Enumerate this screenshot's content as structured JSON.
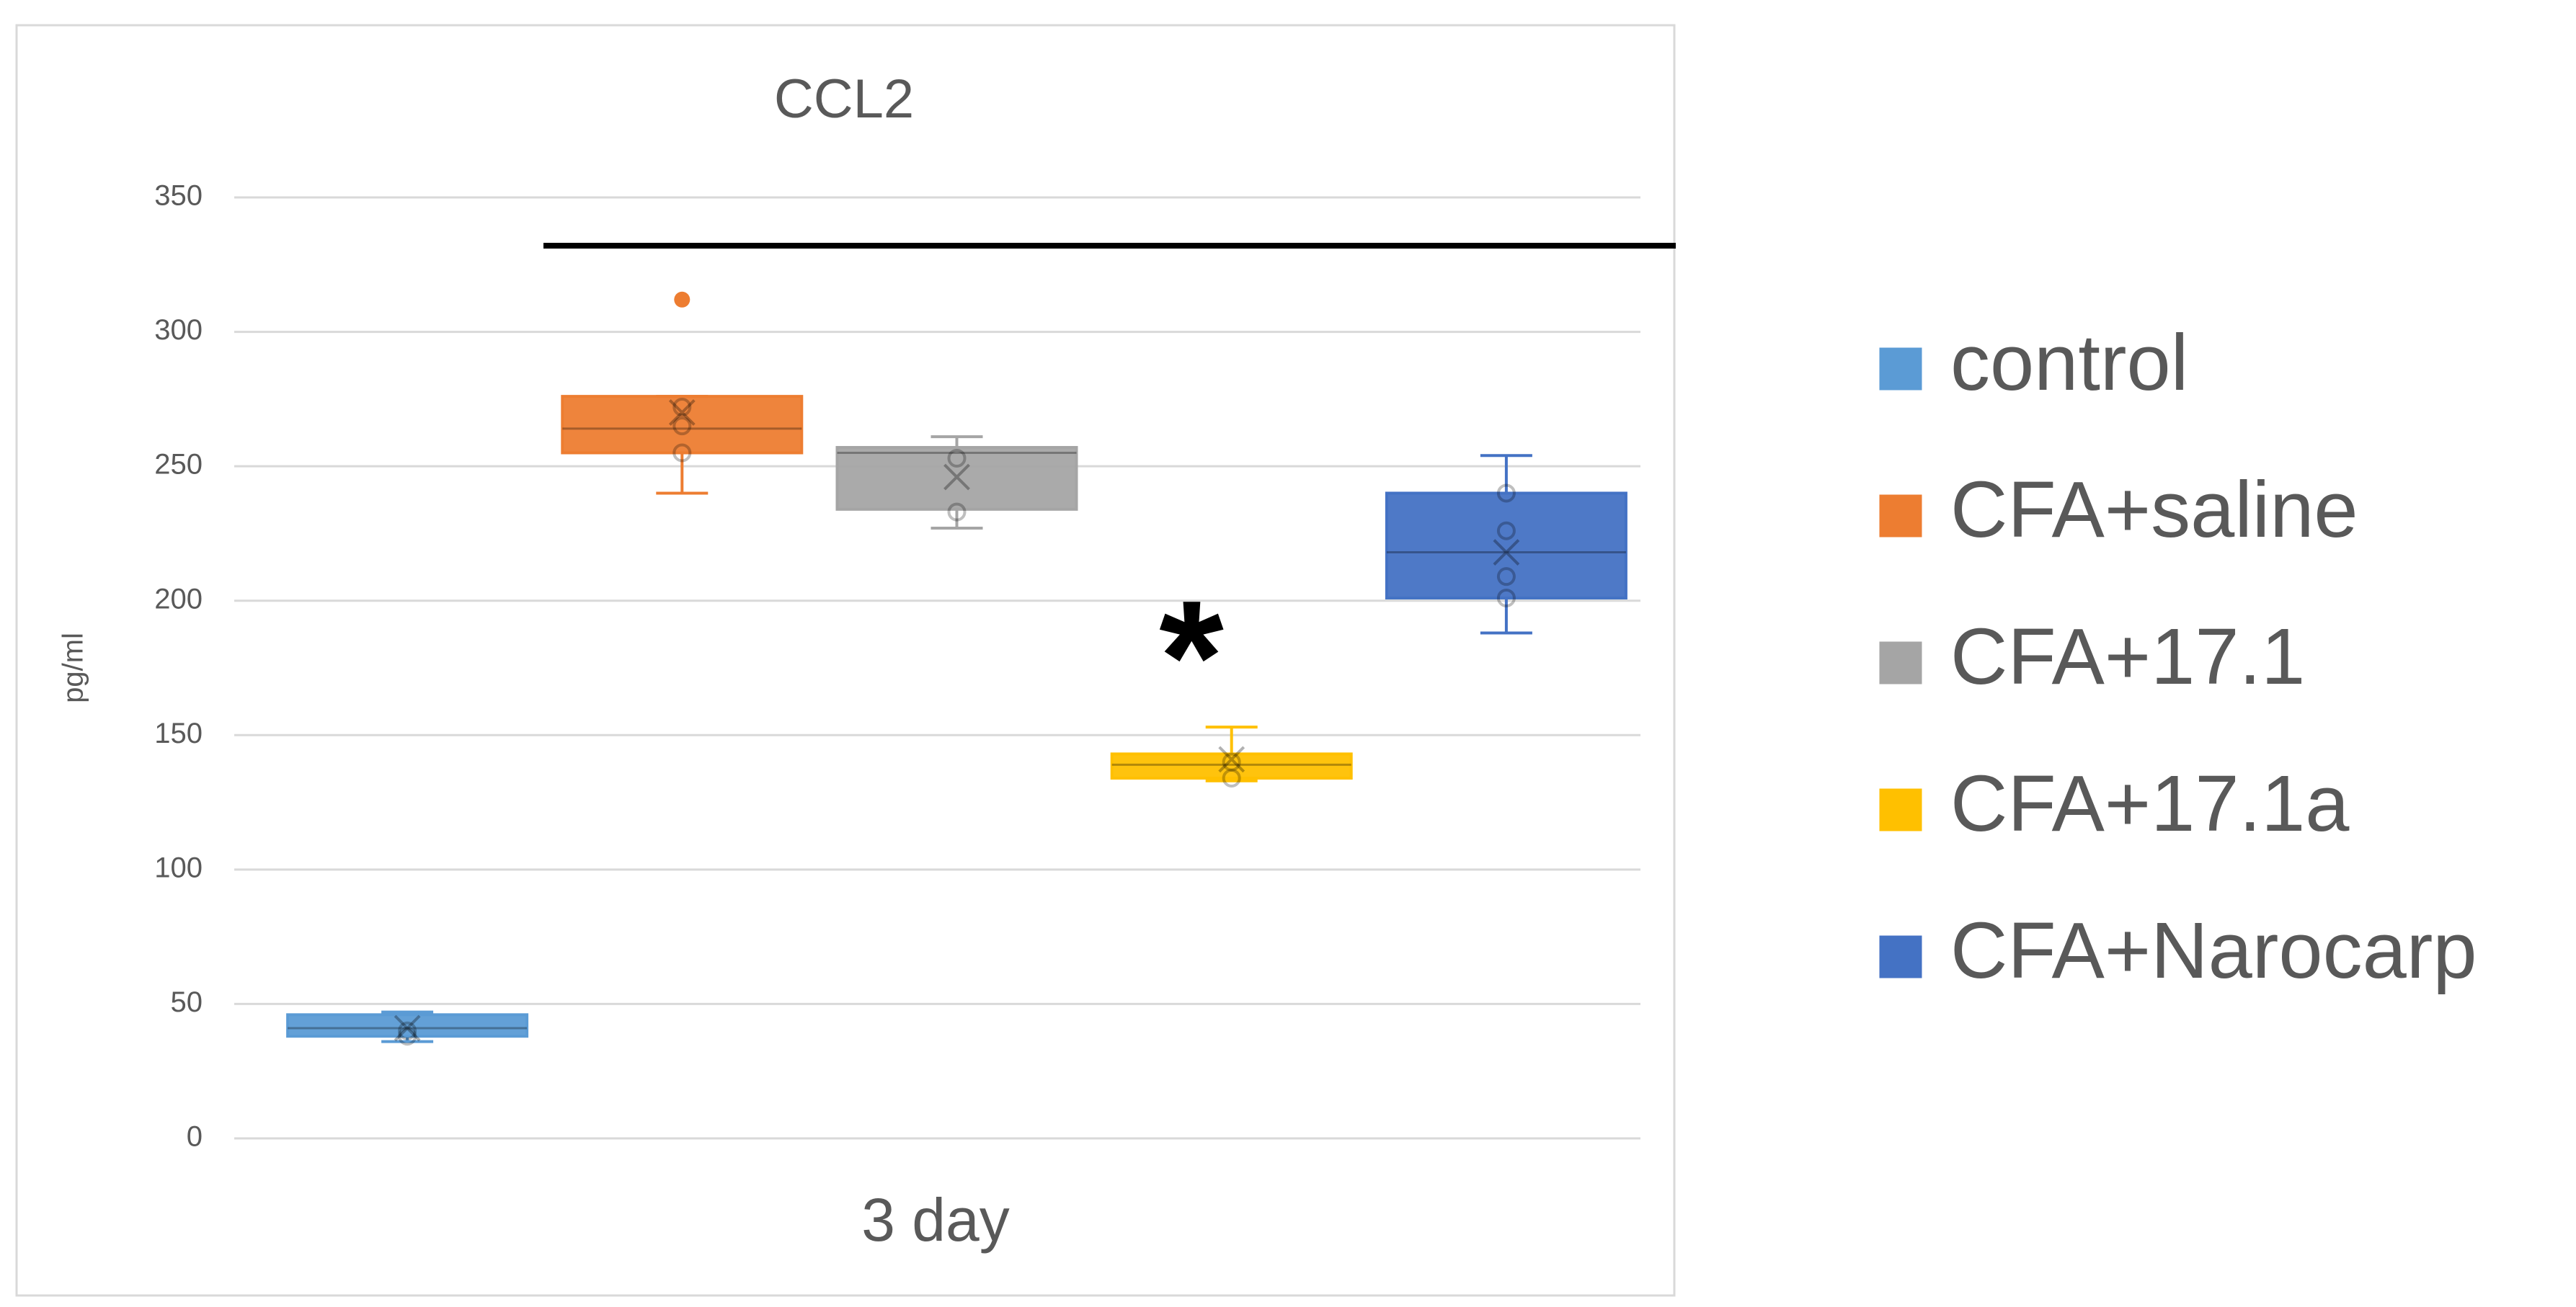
{
  "chart_data": {
    "type": "box",
    "title": "CCL2",
    "ylabel": "pg/ml",
    "categories": [
      "3 day"
    ],
    "ylim": [
      0,
      350
    ],
    "yticks": [
      0,
      50,
      100,
      150,
      200,
      250,
      300,
      350
    ],
    "grid": true,
    "legend": "right",
    "annotations": [
      "*"
    ],
    "series": [
      {
        "name": "control",
        "color": "#5b9bd5",
        "whisker_low": 36,
        "q1": 38,
        "median": 41,
        "q3": 46,
        "whisker_high": 47,
        "mean": 41,
        "points": [
          40,
          38
        ],
        "outliers": []
      },
      {
        "name": "CFA+saline",
        "color": "#ed7d31",
        "whisker_low": 240,
        "q1": 255,
        "median": 264,
        "q3": 276,
        "whisker_high": 276,
        "mean": 270,
        "points": [
          272,
          265,
          255
        ],
        "outliers": [
          312
        ]
      },
      {
        "name": "CFA+17.1",
        "color": "#a5a5a5",
        "whisker_low": 227,
        "q1": 234,
        "median": 255,
        "q3": 257,
        "whisker_high": 261,
        "mean": 246,
        "points": [
          253,
          233
        ],
        "outliers": []
      },
      {
        "name": "CFA+17.1a",
        "color": "#ffc000",
        "whisker_low": 133,
        "q1": 134,
        "median": 139,
        "q3": 143,
        "whisker_high": 153,
        "mean": 141,
        "points": [
          140,
          134
        ],
        "outliers": []
      },
      {
        "name": "CFA+Narocarp",
        "color": "#4472c4",
        "whisker_low": 188,
        "q1": 201,
        "median": 218,
        "q3": 240,
        "whisker_high": 254,
        "mean": 218,
        "points": [
          240,
          226,
          209,
          201
        ],
        "outliers": []
      }
    ]
  }
}
